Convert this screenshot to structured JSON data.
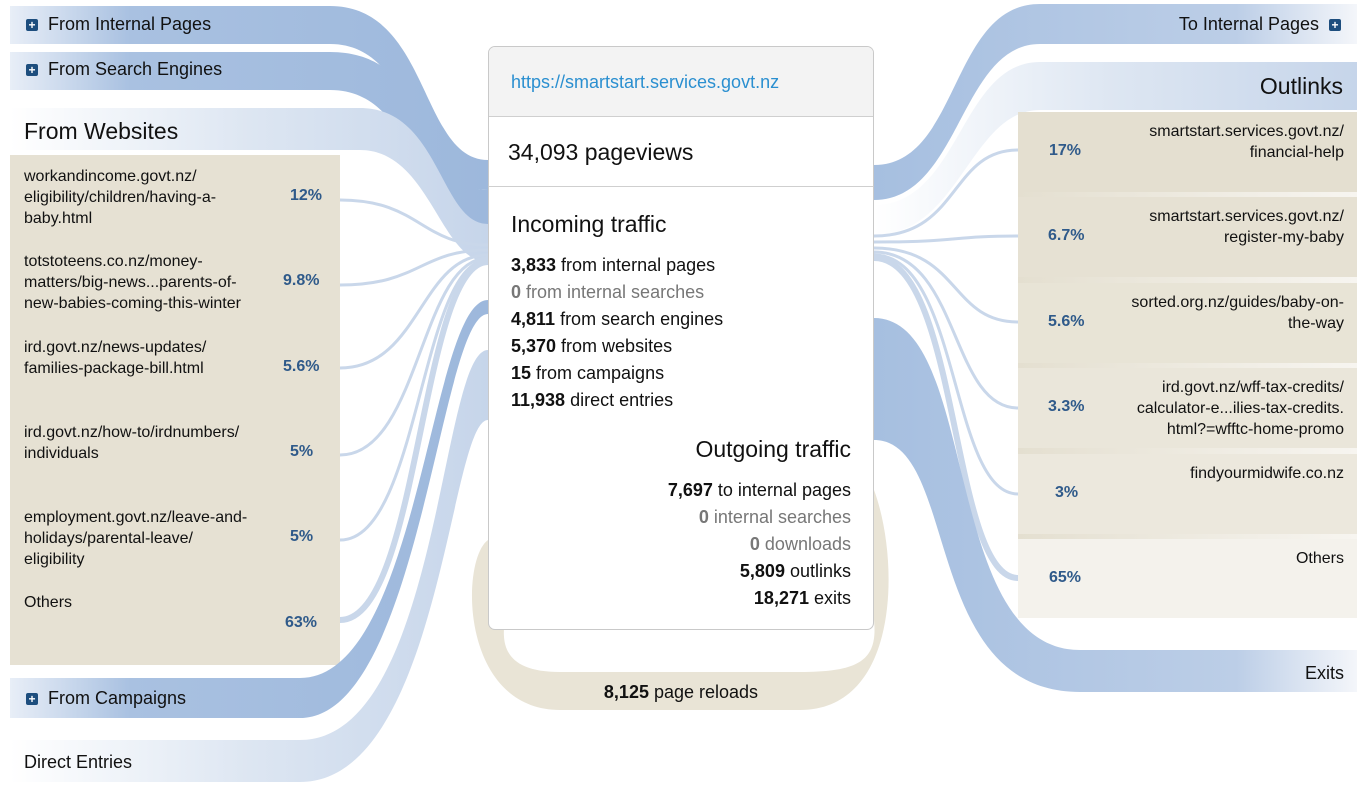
{
  "colors": {
    "blue_flow": "#9db8dc",
    "tan_flow": "#e6e1d3",
    "accent": "#2a8fd0",
    "pct": "#2f5a8a"
  },
  "left": {
    "internal_pages": "From Internal Pages",
    "search_engines": "From Search Engines",
    "websites_heading": "From Websites",
    "websites": [
      {
        "url": "workandincome.govt.nz/\neligibility/children/having-a-\nbaby.html",
        "pct": "12%"
      },
      {
        "url": "totstoteens.co.nz/money-\nmatters/big-news...parents-of-\nnew-babies-coming-this-winter",
        "pct": "9.8%"
      },
      {
        "url": "ird.govt.nz/news-updates/\nfamilies-package-bill.html",
        "pct": "5.6%"
      },
      {
        "url": "ird.govt.nz/how-to/irdnumbers/\nindividuals",
        "pct": "5%"
      },
      {
        "url": "employment.govt.nz/leave-and-\nholidays/parental-leave/\neligibility",
        "pct": "5%"
      },
      {
        "url": "Others",
        "pct": "63%"
      }
    ],
    "campaigns": "From Campaigns",
    "direct": "Direct Entries"
  },
  "right": {
    "internal_pages": "To Internal Pages",
    "outlinks_heading": "Outlinks",
    "outlinks": [
      {
        "url": "smartstart.services.govt.nz/\nfinancial-help",
        "pct": "17%"
      },
      {
        "url": "smartstart.services.govt.nz/\nregister-my-baby",
        "pct": "6.7%"
      },
      {
        "url": "sorted.org.nz/guides/baby-on-\nthe-way",
        "pct": "5.6%"
      },
      {
        "url": "ird.govt.nz/wff-tax-credits/\ncalculator-e...ilies-tax-credits.\nhtml?=wfftc-home-promo",
        "pct": "3.3%"
      },
      {
        "url": "findyourmidwife.co.nz",
        "pct": "3%"
      },
      {
        "url": "Others",
        "pct": "65%"
      }
    ],
    "exits": "Exits"
  },
  "card": {
    "url": "https://smartstart.services.govt.nz",
    "pageviews": "34,093 pageviews",
    "incoming_title": "Incoming traffic",
    "incoming": [
      {
        "value": "3,833",
        "label": " from internal pages"
      },
      {
        "value": "0",
        "label": " from internal searches"
      },
      {
        "value": "4,811",
        "label": " from search engines"
      },
      {
        "value": "5,370",
        "label": " from websites"
      },
      {
        "value": "15",
        "label": " from campaigns"
      },
      {
        "value": "11,938",
        "label": " direct entries"
      }
    ],
    "outgoing_title": "Outgoing traffic",
    "outgoing": [
      {
        "value": "7,697",
        "label": " to internal pages"
      },
      {
        "value": "0",
        "label": " internal searches"
      },
      {
        "value": "0",
        "label": " downloads"
      },
      {
        "value": "5,809",
        "label": " outlinks"
      },
      {
        "value": "18,271",
        "label": " exits"
      }
    ]
  },
  "reloads": {
    "value": "8,125",
    "label": " page reloads"
  }
}
